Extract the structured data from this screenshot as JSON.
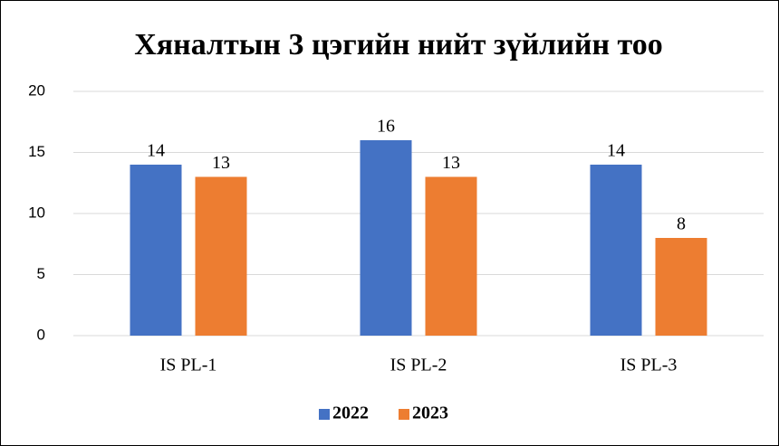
{
  "chart_data": {
    "type": "bar",
    "title": "Хяналтын 3 цэгийн нийт зүйлийн тоо",
    "categories": [
      "IS PL-1",
      "IS PL-2",
      "IS PL-3"
    ],
    "series": [
      {
        "name": "2022",
        "color": "#4472c4",
        "values": [
          14,
          16,
          14
        ]
      },
      {
        "name": "2023",
        "color": "#ed7d31",
        "values": [
          13,
          13,
          8
        ]
      }
    ],
    "ylim": [
      0,
      20
    ],
    "yticks": [
      0,
      5,
      10,
      15,
      20
    ],
    "grid": true,
    "legend": "bottom"
  }
}
